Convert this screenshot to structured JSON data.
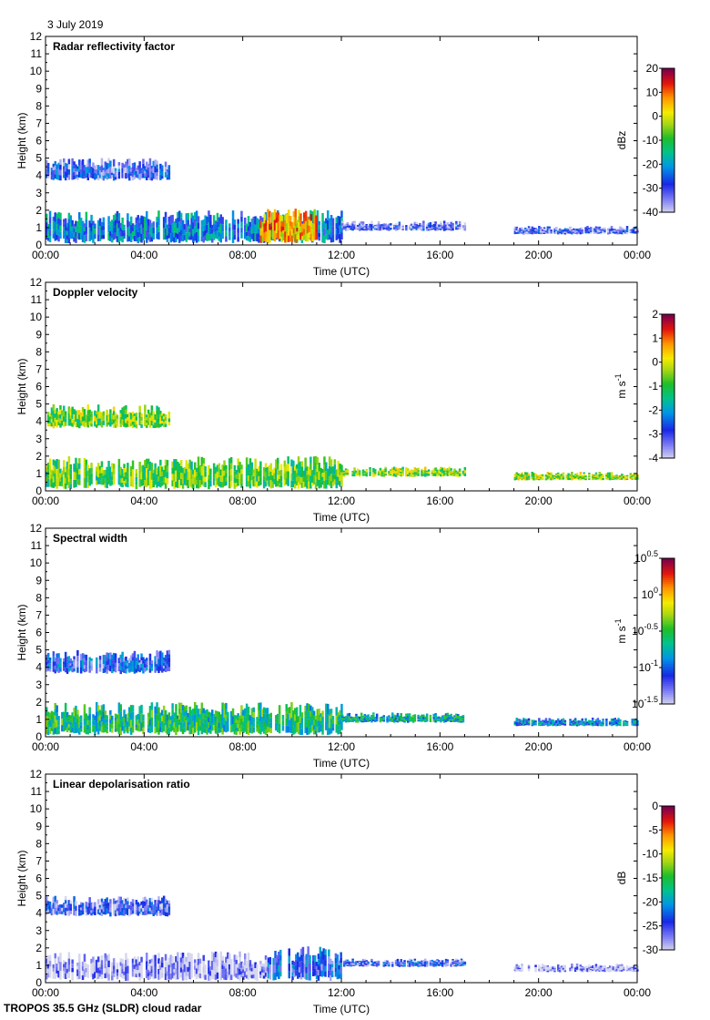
{
  "date": "3 July 2019",
  "footer": "TROPOS 35.5 GHz (SLDR) cloud radar",
  "chart_data": [
    {
      "type": "heatmap",
      "title": "Radar reflectivity factor",
      "xlabel": "Time (UTC)",
      "ylabel": "Height (km)",
      "x_ticks": [
        "00:00",
        "04:00",
        "08:00",
        "12:00",
        "16:00",
        "20:00",
        "00:00"
      ],
      "xlim": [
        0,
        24
      ],
      "y_ticks": [
        0,
        1,
        2,
        3,
        4,
        5,
        6,
        7,
        8,
        9,
        10,
        11,
        12
      ],
      "ylim": [
        0,
        12
      ],
      "colorbar": {
        "label": "dBz",
        "ticks": [
          "20",
          "10",
          "0",
          "-10",
          "-20",
          "-30",
          "-40"
        ],
        "range": [
          -40,
          20
        ]
      },
      "features": [
        {
          "layer": "mid-level cloud",
          "t_start": 0.0,
          "t_end": 5.0,
          "h_bottom": 3.7,
          "h_top": 5.0,
          "value": -30
        },
        {
          "layer": "boundary-layer cloud",
          "t_start": 0.0,
          "t_end": 12.0,
          "h_bottom": 0.1,
          "h_top": 2.0,
          "value": -22
        },
        {
          "layer": "strong core",
          "t_start": 8.7,
          "t_end": 11.0,
          "h_bottom": 0.1,
          "h_top": 2.1,
          "value": 5
        },
        {
          "layer": "afternoon cloud",
          "t_start": 12.0,
          "t_end": 17.0,
          "h_bottom": 0.8,
          "h_top": 1.4,
          "value": -32
        },
        {
          "layer": "evening cloud",
          "t_start": 19.0,
          "t_end": 24.0,
          "h_bottom": 0.6,
          "h_top": 1.1,
          "value": -32
        }
      ]
    },
    {
      "type": "heatmap",
      "title": "Doppler velocity",
      "xlabel": "Time (UTC)",
      "ylabel": "Height (km)",
      "x_ticks": [
        "00:00",
        "04:00",
        "08:00",
        "12:00",
        "16:00",
        "20:00",
        "00:00"
      ],
      "xlim": [
        0,
        24
      ],
      "y_ticks": [
        0,
        1,
        2,
        3,
        4,
        5,
        6,
        7,
        8,
        9,
        10,
        11,
        12
      ],
      "ylim": [
        0,
        12
      ],
      "colorbar": {
        "label": "m s-1",
        "ticks": [
          "2",
          "1",
          "0",
          "-1",
          "-2",
          "-3",
          "-4"
        ],
        "range": [
          -4,
          2
        ]
      },
      "features": [
        {
          "layer": "mid-level cloud",
          "t_start": 0.0,
          "t_end": 5.0,
          "h_bottom": 3.6,
          "h_top": 5.0,
          "value": -0.6
        },
        {
          "layer": "boundary-layer cloud",
          "t_start": 0.0,
          "t_end": 12.0,
          "h_bottom": 0.1,
          "h_top": 2.0,
          "value": -0.8
        },
        {
          "layer": "afternoon cloud",
          "t_start": 12.0,
          "t_end": 17.0,
          "h_bottom": 0.8,
          "h_top": 1.4,
          "value": -0.5
        },
        {
          "layer": "evening cloud",
          "t_start": 19.0,
          "t_end": 24.0,
          "h_bottom": 0.6,
          "h_top": 1.1,
          "value": -0.4
        }
      ]
    },
    {
      "type": "heatmap",
      "title": "Spectral width",
      "xlabel": "Time (UTC)",
      "ylabel": "Height (km)",
      "x_ticks": [
        "00:00",
        "04:00",
        "08:00",
        "12:00",
        "16:00",
        "20:00",
        "00:00"
      ],
      "xlim": [
        0,
        24
      ],
      "y_ticks": [
        0,
        1,
        2,
        3,
        4,
        5,
        6,
        7,
        8,
        9,
        10,
        11,
        12
      ],
      "ylim": [
        0,
        12
      ],
      "colorbar": {
        "label": "m s-1",
        "ticks": [
          "10^0.5",
          "10^0",
          "10^-0.5",
          "10^-1",
          "10^-1.5"
        ],
        "range": [
          -1.5,
          0.5
        ],
        "scale": "log10"
      },
      "features": [
        {
          "layer": "mid-level cloud",
          "t_start": 0.0,
          "t_end": 5.0,
          "h_bottom": 3.6,
          "h_top": 5.0,
          "value": -1.1
        },
        {
          "layer": "boundary-layer cloud",
          "t_start": 0.0,
          "t_end": 12.0,
          "h_bottom": 0.1,
          "h_top": 2.0,
          "value": -0.6
        },
        {
          "layer": "afternoon cloud",
          "t_start": 12.0,
          "t_end": 17.0,
          "h_bottom": 0.8,
          "h_top": 1.4,
          "value": -0.7
        },
        {
          "layer": "evening cloud",
          "t_start": 19.0,
          "t_end": 24.0,
          "h_bottom": 0.6,
          "h_top": 1.1,
          "value": -0.9
        }
      ]
    },
    {
      "type": "heatmap",
      "title": "Linear depolarisation ratio",
      "xlabel": "Time (UTC)",
      "ylabel": "Height (km)",
      "x_ticks": [
        "00:00",
        "04:00",
        "08:00",
        "12:00",
        "16:00",
        "20:00",
        "00:00"
      ],
      "xlim": [
        0,
        24
      ],
      "y_ticks": [
        0,
        1,
        2,
        3,
        4,
        5,
        6,
        7,
        8,
        9,
        10,
        11,
        12
      ],
      "ylim": [
        0,
        12
      ],
      "colorbar": {
        "label": "dB",
        "ticks": [
          "0",
          "-5",
          "-10",
          "-15",
          "-20",
          "-25",
          "-30"
        ],
        "range": [
          -30,
          0
        ]
      },
      "features": [
        {
          "layer": "mid-level cloud",
          "t_start": 0.0,
          "t_end": 5.0,
          "h_bottom": 3.8,
          "h_top": 5.0,
          "value": -26
        },
        {
          "layer": "boundary-layer cloud",
          "t_start": 0.0,
          "t_end": 9.0,
          "h_bottom": 0.1,
          "h_top": 1.8,
          "value": -29
        },
        {
          "layer": "late-morning cloud",
          "t_start": 9.0,
          "t_end": 12.0,
          "h_bottom": 0.1,
          "h_top": 2.1,
          "value": -24
        },
        {
          "layer": "afternoon cloud",
          "t_start": 12.0,
          "t_end": 17.0,
          "h_bottom": 0.9,
          "h_top": 1.4,
          "value": -25
        },
        {
          "layer": "evening cloud",
          "t_start": 19.0,
          "t_end": 24.0,
          "h_bottom": 0.6,
          "h_top": 1.1,
          "value": -29
        }
      ]
    }
  ]
}
